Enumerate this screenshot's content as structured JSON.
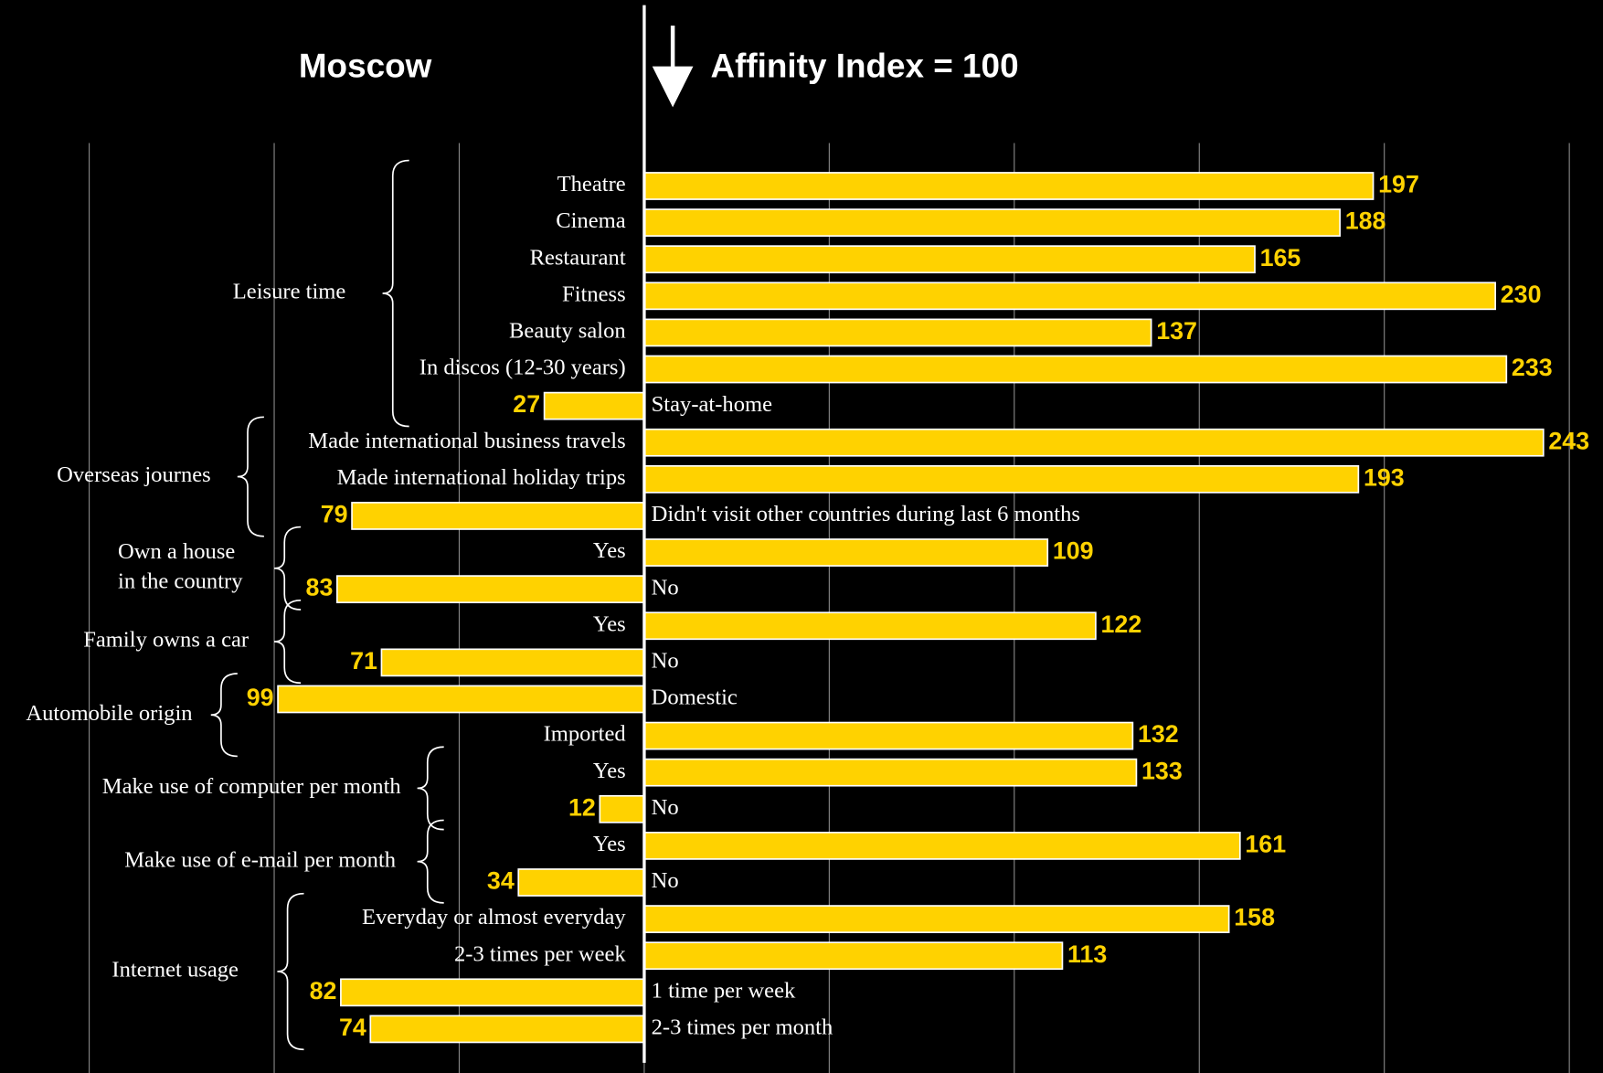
{
  "chart_data": {
    "type": "diverging-bar",
    "title_left": "Moscow",
    "title_right": "Affinity Index = 100",
    "reference": 100,
    "color": "#ffd200",
    "xlim": [
      -174,
      259
    ],
    "xticks": [
      -150,
      -100,
      -50,
      0,
      50,
      100,
      150,
      200,
      250
    ],
    "grid": true,
    "categories": [
      "Theatre",
      "Cinema",
      "Restaurant",
      "Fitness",
      "Beauty salon",
      "In discos (12-30 years)",
      "Stay-at-home",
      "Made international business travels",
      "Made international holiday trips",
      "Didn't visit other countries during last 6 months",
      "Yes",
      "No",
      "Yes",
      "No",
      "Domestic",
      "Imported",
      "Yes",
      "No",
      "Yes",
      "No",
      "Everyday or almost everyday",
      "2-3 times per week",
      "1 time per week",
      "2-3 times per month"
    ],
    "values": [
      197,
      188,
      165,
      230,
      137,
      233,
      27,
      243,
      193,
      79,
      109,
      83,
      122,
      71,
      99,
      132,
      133,
      12,
      161,
      34,
      158,
      113,
      82,
      74
    ],
    "groups": [
      {
        "label": [
          "Leisure time"
        ],
        "start": 0,
        "end": 6
      },
      {
        "label": [
          "Overseas journes"
        ],
        "start": 7,
        "end": 9
      },
      {
        "label": [
          "Own a house",
          "in the country"
        ],
        "start": 10,
        "end": 11
      },
      {
        "label": [
          "Family owns a car"
        ],
        "start": 12,
        "end": 13
      },
      {
        "label": [
          "Automobile origin"
        ],
        "start": 14,
        "end": 15
      },
      {
        "label": [
          "Make use of computer per month"
        ],
        "start": 16,
        "end": 17
      },
      {
        "label": [
          "Make use of e-mail per month"
        ],
        "start": 18,
        "end": 19
      },
      {
        "label": [
          "Internet usage"
        ],
        "start": 20,
        "end": 23
      }
    ]
  }
}
